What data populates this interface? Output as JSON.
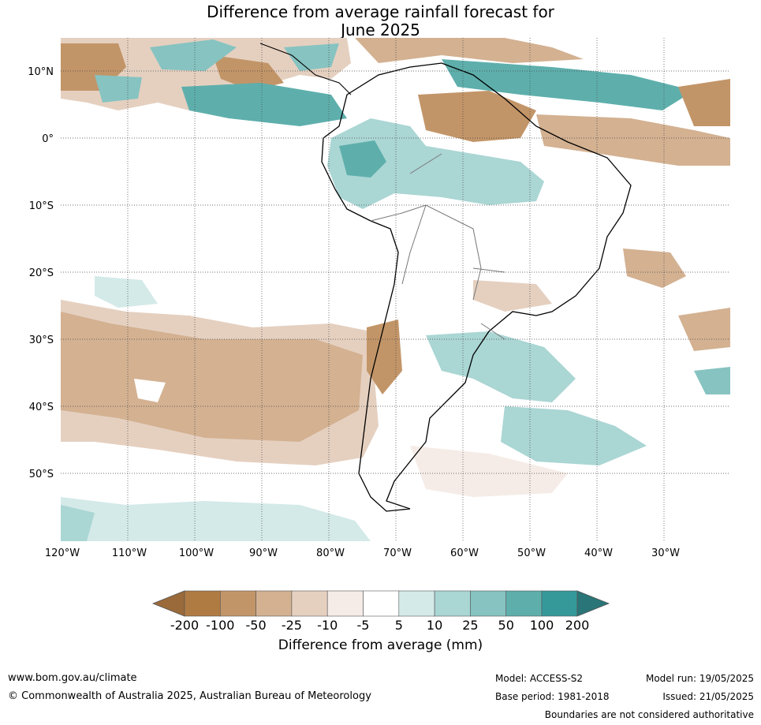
{
  "title": {
    "line1": "Difference from average rainfall forecast for",
    "line2": "June 2025"
  },
  "map": {
    "lon_ticks": [
      "120°W",
      "110°W",
      "100°W",
      "90°W",
      "80°W",
      "70°W",
      "60°W",
      "50°W",
      "40°W",
      "30°W"
    ],
    "lat_ticks": [
      "10°N",
      "0°",
      "10°S",
      "20°S",
      "30°S",
      "40°S",
      "50°S"
    ]
  },
  "colorbar": {
    "title": "Difference from average (mm)",
    "tick_labels": [
      "-200",
      "-100",
      "-50",
      "-25",
      "-10",
      "-5",
      "5",
      "10",
      "25",
      "50",
      "100",
      "200"
    ],
    "colors": [
      "#9b6a3a",
      "#b07b43",
      "#c29568",
      "#d3b191",
      "#e5d0c0",
      "#f5ece7",
      "#ffffff",
      "#d4eae8",
      "#aad6d4",
      "#86c3c1",
      "#5eafac",
      "#35999a",
      "#2a7577"
    ]
  },
  "footer": {
    "website": "www.bom.gov.au/climate",
    "copyright": "© Commonwealth of Australia 2025, Australian Bureau of Meteorology",
    "model": "Model: ACCESS-S2",
    "base_period": "Base period: 1981-2018",
    "model_run": "Model run: 19/05/2025",
    "issued": "Issued: 21/05/2025",
    "disclaimer": "Boundaries are not considered authoritative"
  }
}
